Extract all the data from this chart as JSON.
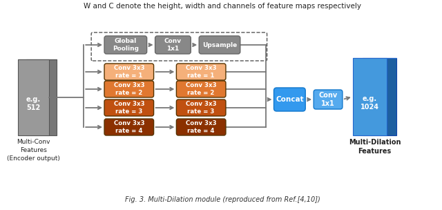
{
  "title": "Fig. 3. Multi-Dilation module (reproduced from Ref.[4,10])",
  "header_text": "W and C denote the height, width and channels of feature maps respectively",
  "bg_color": "#ffffff",
  "orange_colors": [
    "#f5b07a",
    "#e07830",
    "#c05010",
    "#8b3000"
  ],
  "gray_top_color": "#888888",
  "gray_top_edge": "#666666",
  "concat_color": "#3399ee",
  "conv1x1_color": "#55aaee",
  "blue_front": "#4499dd",
  "blue_back": "#1e5fa0",
  "blue_top_face": "#6ab0e8",
  "gray_front": "#999999",
  "gray_back": "#777777",
  "gray_top_face": "#c0c0c0",
  "arrow_color": "#777777",
  "dark_text": "#222222",
  "rate_labels_left": [
    "Conv 3x3\nrate = 1",
    "Conv 3x3\nrate = 2",
    "Conv 3x3\nrate = 3",
    "Conv 3x3\nrate = 4"
  ],
  "rate_labels_right": [
    "Conv 3x3\nrate = 1",
    "Conv 3x3\nrate = 2",
    "Conv 3x3\nrate = 3",
    "Conv 3x3\nrate = 4"
  ]
}
